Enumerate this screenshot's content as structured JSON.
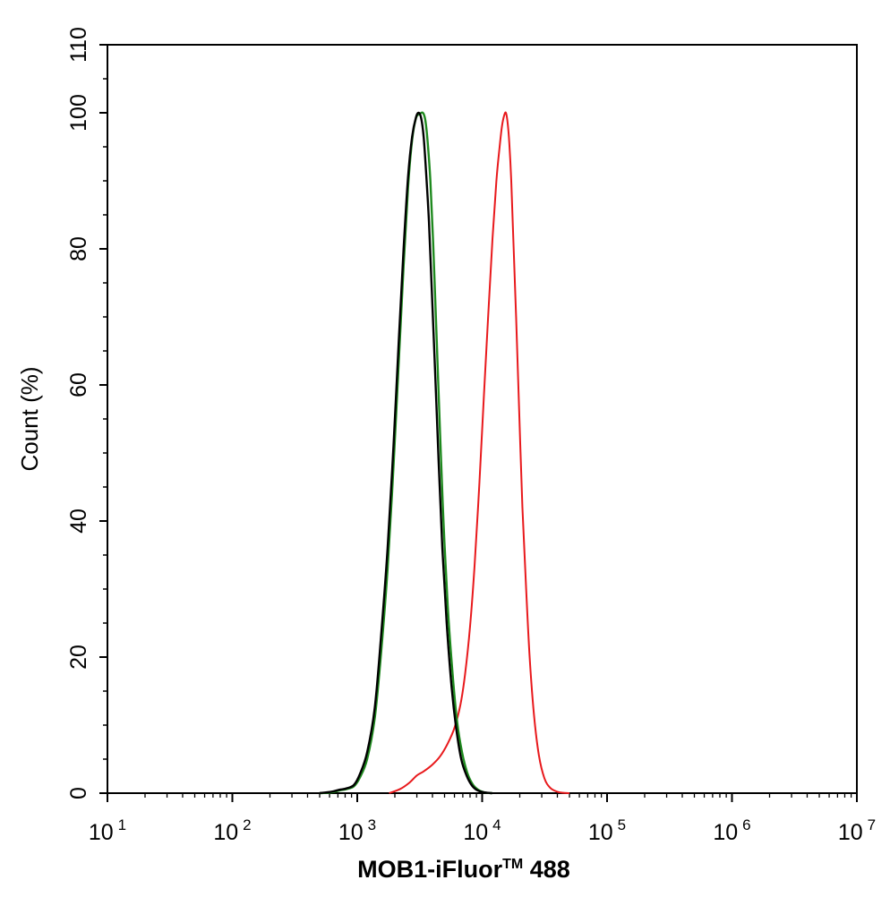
{
  "chart_data": {
    "type": "line",
    "x_scale": "log",
    "xlim": [
      10,
      10000000
    ],
    "ylim": [
      0,
      110
    ],
    "grid": false,
    "ylabel": "Count  (%)",
    "xlabel_main": "MOB1-iFluor",
    "xlabel_tm": "TM",
    "xlabel_end": " 488",
    "y_ticks": [
      0,
      20,
      40,
      60,
      80,
      100,
      110
    ],
    "y_tick_labels": [
      "0",
      "20",
      "40",
      "60",
      "80",
      "100",
      "110"
    ],
    "x_ticks": [
      {
        "value": 10,
        "base": "10",
        "exp": "1"
      },
      {
        "value": 100,
        "base": "10",
        "exp": "2"
      },
      {
        "value": 1000,
        "base": "10",
        "exp": "3"
      },
      {
        "value": 10000,
        "base": "10",
        "exp": "4"
      },
      {
        "value": 100000,
        "base": "10",
        "exp": "5"
      },
      {
        "value": 1000000,
        "base": "10",
        "exp": "6"
      },
      {
        "value": 10000000,
        "base": "10",
        "exp": "7"
      }
    ],
    "series": [
      {
        "color": "#e8191c",
        "x": [
          1800,
          2200,
          2600,
          3000,
          3400,
          4000,
          4600,
          5300,
          6000,
          6700,
          7300,
          8000,
          8700,
          9500,
          10300,
          11200,
          12100,
          13000,
          13800,
          14400,
          15000,
          15500,
          16000,
          16500,
          17100,
          17800,
          18700,
          19800,
          21000,
          22500,
          24000,
          26000,
          28500,
          31500,
          35000,
          40000,
          45000,
          50000
        ],
        "y": [
          0,
          0.6,
          1.5,
          2.6,
          3.2,
          4.2,
          5.4,
          7.3,
          9.6,
          13.0,
          17.5,
          24.5,
          33.5,
          45.5,
          58.0,
          70.5,
          81.5,
          90.0,
          95.0,
          98.0,
          99.6,
          100,
          98.5,
          95.5,
          90.0,
          81.0,
          70.0,
          56.0,
          42.0,
          30.0,
          20.0,
          11.5,
          5.5,
          2.2,
          0.8,
          0.2,
          0.05,
          0
        ]
      },
      {
        "color": "#1f8a1f",
        "x": [
          500,
          620,
          720,
          820,
          940,
          1050,
          1200,
          1380,
          1550,
          1750,
          1950,
          2150,
          2350,
          2550,
          2750,
          2950,
          3150,
          3350,
          3500,
          3650,
          3850,
          4050,
          4300,
          4600,
          4900,
          5300,
          5800,
          6300,
          6900,
          7600,
          8400,
          9300,
          10500,
          12000
        ],
        "y": [
          0,
          0.1,
          0.4,
          0.6,
          1.0,
          2.3,
          5.0,
          11.0,
          20.5,
          33.0,
          48.0,
          63.5,
          77.5,
          89.0,
          96.0,
          99.2,
          99.8,
          100,
          99.0,
          96.0,
          90.0,
          81.0,
          68.0,
          53.0,
          40.0,
          27.5,
          17.5,
          10.5,
          6.0,
          3.0,
          1.3,
          0.5,
          0.1,
          0
        ]
      },
      {
        "color": "#000000",
        "x": [
          500,
          620,
          720,
          820,
          940,
          1050,
          1200,
          1380,
          1550,
          1750,
          1950,
          2150,
          2350,
          2550,
          2750,
          2950,
          3100,
          3250,
          3400,
          3550,
          3750,
          3950,
          4200,
          4500,
          4800,
          5200,
          5700,
          6200,
          6800,
          7500,
          8300,
          9200,
          10500,
          12000
        ],
        "y": [
          0,
          0.2,
          0.5,
          0.7,
          1.2,
          2.8,
          6.0,
          12.5,
          23.0,
          36.0,
          51.0,
          66.5,
          80.0,
          90.5,
          96.5,
          99.3,
          100,
          99.2,
          96.5,
          91.5,
          84.0,
          74.0,
          62.0,
          48.0,
          36.0,
          25.0,
          15.5,
          9.5,
          5.0,
          2.6,
          1.1,
          0.4,
          0.1,
          0
        ]
      }
    ]
  }
}
